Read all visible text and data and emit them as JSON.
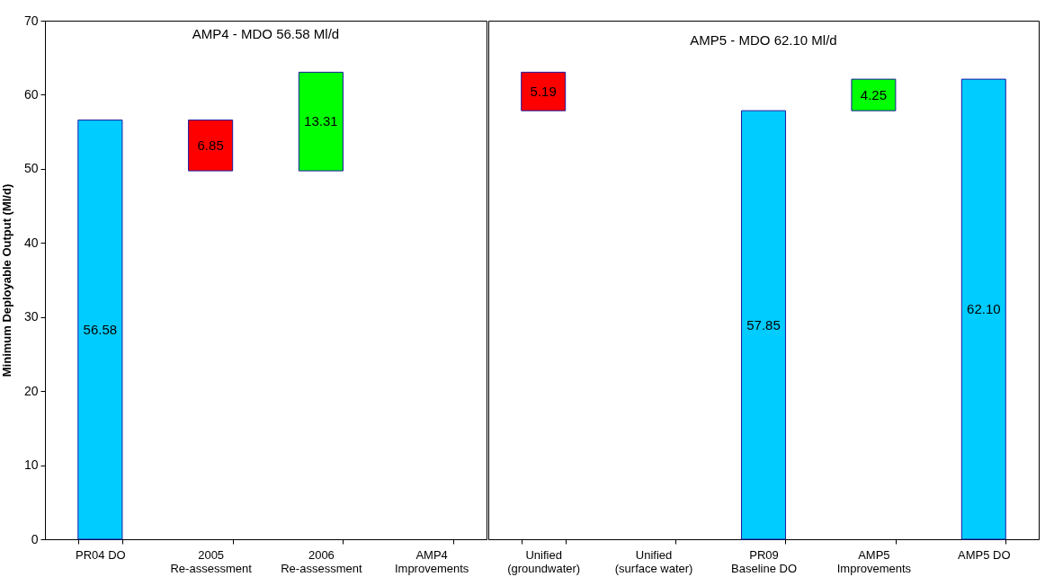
{
  "chart_data": [
    {
      "type": "bar",
      "title": "AMP4 - MDO 56.58 Ml/d",
      "ylabel": "Minimum Deployable Output (Ml/d)",
      "categories": [
        "PR04 DO",
        "2005\nRe-assessment",
        "2006\nRe-assessment",
        "AMP4\nImprovements"
      ],
      "values": [
        56.58,
        6.85,
        13.31,
        null
      ],
      "base": [
        0,
        49.73,
        49.73,
        null
      ],
      "colors": [
        "#00ccff",
        "#ff0000",
        "#00ff00",
        "#00ccff"
      ],
      "value_labels": [
        "56.58",
        "6.85",
        "13.31",
        null
      ],
      "ylim": [
        0,
        70
      ],
      "yticks": [
        0,
        10,
        20,
        30,
        40,
        50,
        60,
        70
      ],
      "grid": false
    },
    {
      "type": "bar",
      "title": "AMP5 - MDO 62.10 Ml/d",
      "categories": [
        "Unified\n(groundwater)",
        "Unified\n(surface water)",
        "PR09\nBaseline DO",
        "AMP5\nImprovements",
        "AMP5 DO"
      ],
      "values": [
        5.19,
        null,
        57.85,
        4.25,
        62.1
      ],
      "base": [
        57.85,
        null,
        0,
        57.85,
        0
      ],
      "colors": [
        "#ff0000",
        "#00ccff",
        "#00ccff",
        "#00ff00",
        "#00ccff"
      ],
      "value_labels": [
        "5.19",
        null,
        "57.85",
        "4.25",
        "62.10"
      ],
      "ylim": [
        0,
        70
      ],
      "yticks": [
        0,
        10,
        20,
        30,
        40,
        50,
        60,
        70
      ],
      "tick_labels": "x",
      "grid": false
    }
  ]
}
